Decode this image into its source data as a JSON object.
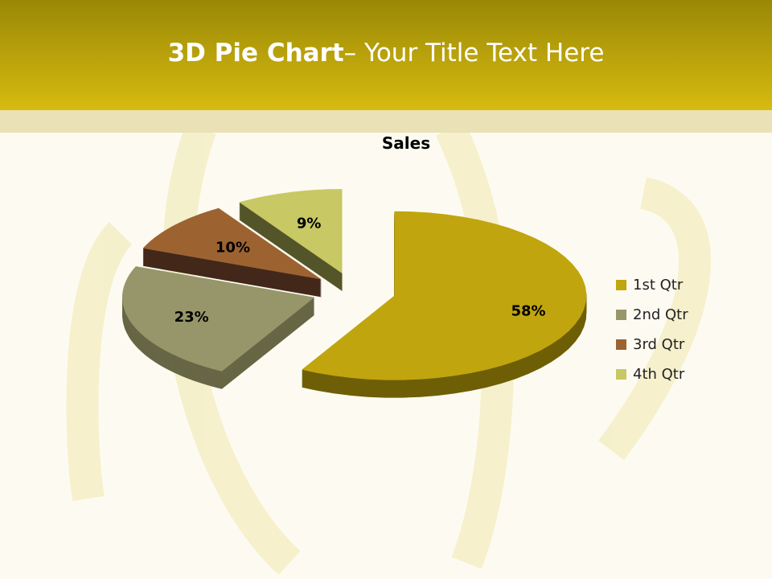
{
  "slide": {
    "title_bold": "3D Pie Chart",
    "title_rest": "– Your Title Text Here"
  },
  "chart_data": {
    "type": "pie",
    "variant": "3d-exploded",
    "title": "Sales",
    "categories": [
      "1st Qtr",
      "2nd Qtr",
      "3rd Qtr",
      "4th Qtr"
    ],
    "values": [
      58,
      23,
      10,
      9
    ],
    "data_labels": [
      "58%",
      "23%",
      "10%",
      "9%"
    ],
    "colors": [
      "#C0A50E",
      "#96966A",
      "#9C6331",
      "#C8C864"
    ],
    "side_colors": [
      "#6E5F06",
      "#676746",
      "#43281A",
      "#55552A"
    ],
    "legend_position": "right"
  }
}
